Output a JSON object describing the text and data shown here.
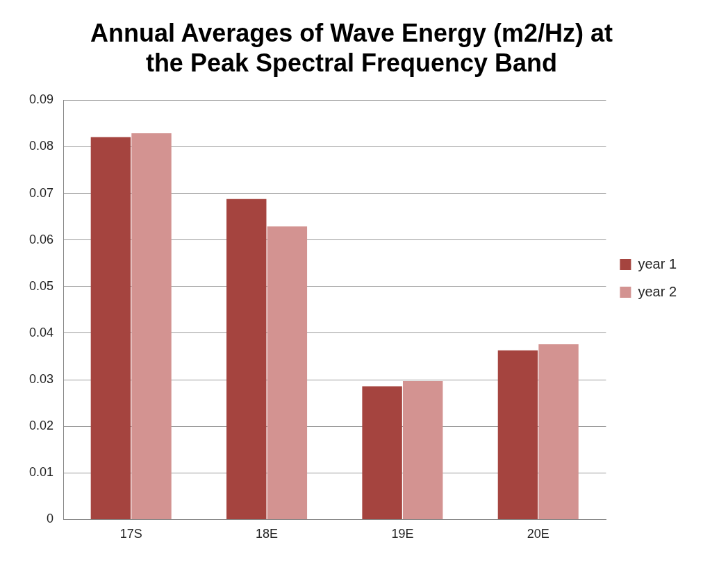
{
  "chart_data": {
    "type": "bar",
    "title": "Annual Averages of Wave Energy (m2/Hz) at the Peak Spectral Frequency Band",
    "categories": [
      "17S",
      "18E",
      "19E",
      "20E"
    ],
    "series": [
      {
        "name": "year 1",
        "color": "#a5443f",
        "values": [
          0.0821,
          0.0688,
          0.0286,
          0.0363
        ]
      },
      {
        "name": "year 2",
        "color": "#d39391",
        "values": [
          0.0829,
          0.0629,
          0.0297,
          0.0376
        ]
      }
    ],
    "ylim": [
      0,
      0.09
    ],
    "yticks": [
      0,
      0.01,
      0.02,
      0.03,
      0.04,
      0.05,
      0.06,
      0.07,
      0.08,
      0.09
    ],
    "grid": "y",
    "legend": "right"
  }
}
